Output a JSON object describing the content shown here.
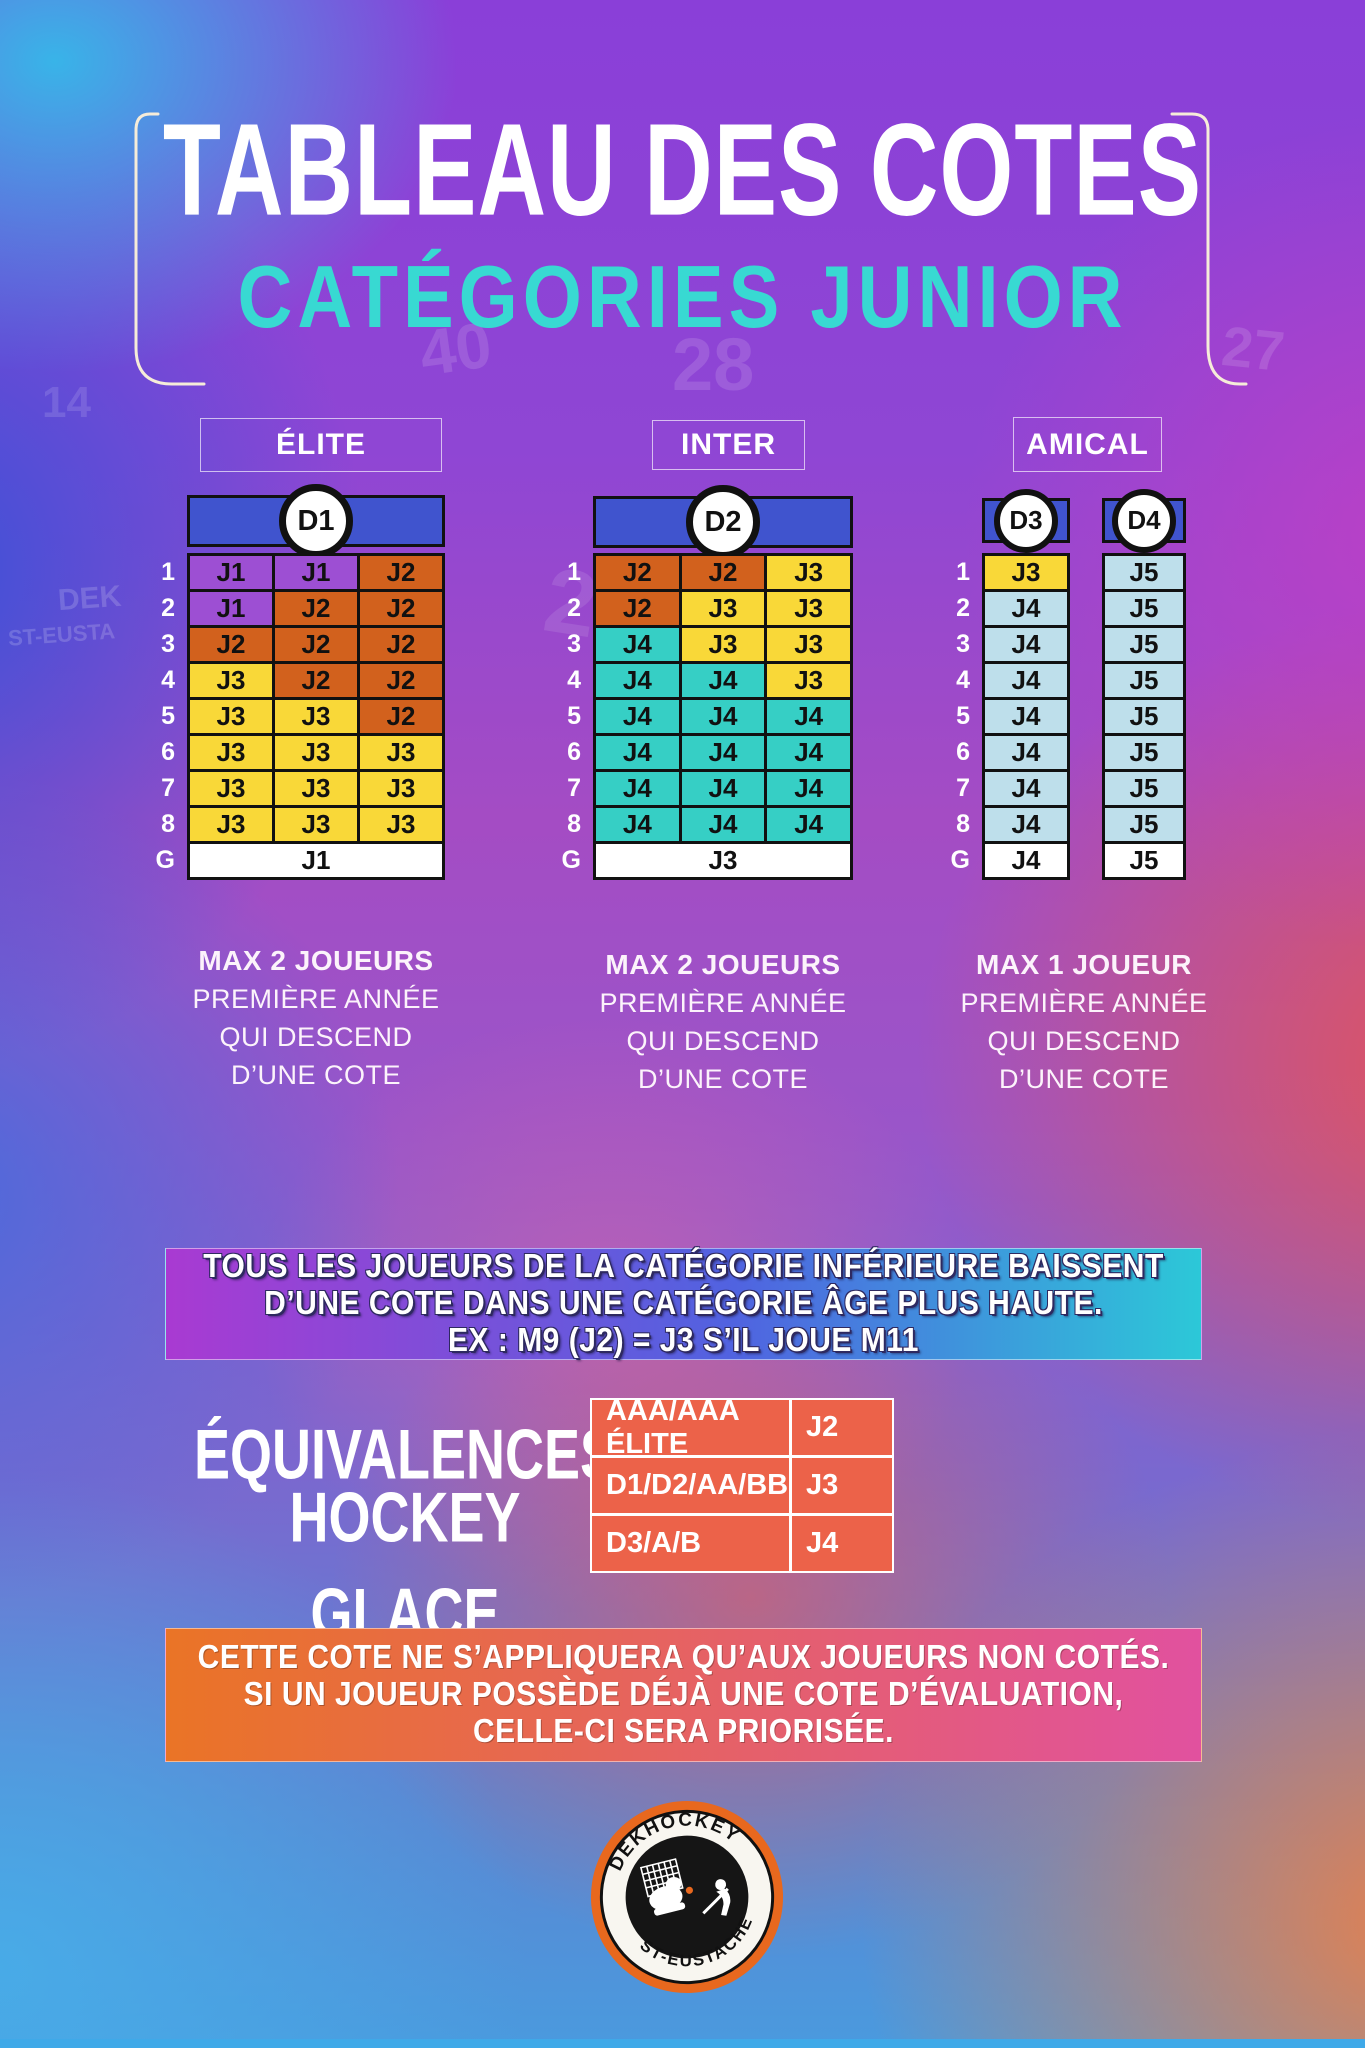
{
  "title": {
    "line1": "TABLEAU DES COTES",
    "line2": "CATÉGORIES JUNIOR"
  },
  "categories": [
    {
      "label": "ÉLITE"
    },
    {
      "label": "INTER"
    },
    {
      "label": "AMICAL"
    }
  ],
  "row_labels": [
    "1",
    "2",
    "3",
    "4",
    "5",
    "6",
    "7",
    "8",
    "G"
  ],
  "grids": [
    {
      "division": "D1",
      "columns": 3,
      "rows": [
        [
          {
            "v": "J1",
            "c": "purple"
          },
          {
            "v": "J1",
            "c": "purple"
          },
          {
            "v": "J2",
            "c": "orange"
          }
        ],
        [
          {
            "v": "J1",
            "c": "purple"
          },
          {
            "v": "J2",
            "c": "orange"
          },
          {
            "v": "J2",
            "c": "orange"
          }
        ],
        [
          {
            "v": "J2",
            "c": "orange"
          },
          {
            "v": "J2",
            "c": "orange"
          },
          {
            "v": "J2",
            "c": "orange"
          }
        ],
        [
          {
            "v": "J3",
            "c": "yellow"
          },
          {
            "v": "J2",
            "c": "orange"
          },
          {
            "v": "J2",
            "c": "orange"
          }
        ],
        [
          {
            "v": "J3",
            "c": "yellow"
          },
          {
            "v": "J3",
            "c": "yellow"
          },
          {
            "v": "J2",
            "c": "orange"
          }
        ],
        [
          {
            "v": "J3",
            "c": "yellow"
          },
          {
            "v": "J3",
            "c": "yellow"
          },
          {
            "v": "J3",
            "c": "yellow"
          }
        ],
        [
          {
            "v": "J3",
            "c": "yellow"
          },
          {
            "v": "J3",
            "c": "yellow"
          },
          {
            "v": "J3",
            "c": "yellow"
          }
        ],
        [
          {
            "v": "J3",
            "c": "yellow"
          },
          {
            "v": "J3",
            "c": "yellow"
          },
          {
            "v": "J3",
            "c": "yellow"
          }
        ]
      ],
      "goalie": {
        "v": "J1",
        "c": "white"
      }
    },
    {
      "division": "D2",
      "columns": 3,
      "rows": [
        [
          {
            "v": "J2",
            "c": "orange"
          },
          {
            "v": "J2",
            "c": "orange"
          },
          {
            "v": "J3",
            "c": "yellow"
          }
        ],
        [
          {
            "v": "J2",
            "c": "orange"
          },
          {
            "v": "J3",
            "c": "yellow"
          },
          {
            "v": "J3",
            "c": "yellow"
          }
        ],
        [
          {
            "v": "J4",
            "c": "teal"
          },
          {
            "v": "J3",
            "c": "yellow"
          },
          {
            "v": "J3",
            "c": "yellow"
          }
        ],
        [
          {
            "v": "J4",
            "c": "teal"
          },
          {
            "v": "J4",
            "c": "teal"
          },
          {
            "v": "J3",
            "c": "yellow"
          }
        ],
        [
          {
            "v": "J4",
            "c": "teal"
          },
          {
            "v": "J4",
            "c": "teal"
          },
          {
            "v": "J4",
            "c": "teal"
          }
        ],
        [
          {
            "v": "J4",
            "c": "teal"
          },
          {
            "v": "J4",
            "c": "teal"
          },
          {
            "v": "J4",
            "c": "teal"
          }
        ],
        [
          {
            "v": "J4",
            "c": "teal"
          },
          {
            "v": "J4",
            "c": "teal"
          },
          {
            "v": "J4",
            "c": "teal"
          }
        ],
        [
          {
            "v": "J4",
            "c": "teal"
          },
          {
            "v": "J4",
            "c": "teal"
          },
          {
            "v": "J4",
            "c": "teal"
          }
        ]
      ],
      "goalie": {
        "v": "J3",
        "c": "white"
      }
    },
    {
      "division": "D3",
      "columns": 1,
      "rows": [
        [
          {
            "v": "J3",
            "c": "yellow"
          }
        ],
        [
          {
            "v": "J4",
            "c": "lightblue"
          }
        ],
        [
          {
            "v": "J4",
            "c": "lightblue"
          }
        ],
        [
          {
            "v": "J4",
            "c": "lightblue"
          }
        ],
        [
          {
            "v": "J4",
            "c": "lightblue"
          }
        ],
        [
          {
            "v": "J4",
            "c": "lightblue"
          }
        ],
        [
          {
            "v": "J4",
            "c": "lightblue"
          }
        ],
        [
          {
            "v": "J4",
            "c": "lightblue"
          }
        ]
      ],
      "goalie": {
        "v": "J4",
        "c": "white"
      }
    },
    {
      "division": "D4",
      "columns": 1,
      "rows": [
        [
          {
            "v": "J5",
            "c": "lightblue"
          }
        ],
        [
          {
            "v": "J5",
            "c": "lightblue"
          }
        ],
        [
          {
            "v": "J5",
            "c": "lightblue"
          }
        ],
        [
          {
            "v": "J5",
            "c": "lightblue"
          }
        ],
        [
          {
            "v": "J5",
            "c": "lightblue"
          }
        ],
        [
          {
            "v": "J5",
            "c": "lightblue"
          }
        ],
        [
          {
            "v": "J5",
            "c": "lightblue"
          }
        ],
        [
          {
            "v": "J5",
            "c": "lightblue"
          }
        ]
      ],
      "goalie": {
        "v": "J5",
        "c": "white"
      }
    }
  ],
  "notes": [
    {
      "lines": [
        "MAX 2 JOUEURS",
        "PREMIÈRE ANNÉE",
        "QUI DESCEND",
        "D’UNE COTE"
      ]
    },
    {
      "lines": [
        "MAX 2 JOUEURS",
        "PREMIÈRE ANNÉE",
        "QUI DESCEND",
        "D’UNE COTE"
      ]
    },
    {
      "lines": [
        "MAX 1 JOUEUR",
        "PREMIÈRE ANNÉE",
        "QUI DESCEND",
        "D’UNE COTE"
      ]
    }
  ],
  "banner_rule": {
    "lines": [
      "TOUS LES JOUEURS DE LA CATÉGORIE INFÉRIEURE BAISSENT",
      "D’UNE COTE DANS UNE CATÉGORIE ÂGE PLUS HAUTE.",
      "EX : M9 (J2) = J3 S’IL JOUE M11"
    ]
  },
  "equivalences": {
    "title_lines": [
      "ÉQUIVALENCES",
      "HOCKEY GLACE"
    ],
    "rows": [
      {
        "label": "AAA/AAA ÉLITE",
        "value": "J2"
      },
      {
        "label": "D1/D2/AA/BB",
        "value": "J3"
      },
      {
        "label": "D3/A/B",
        "value": "J4"
      }
    ]
  },
  "banner_note": {
    "lines": [
      "CETTE COTE NE S’APPLIQUERA QU’AUX JOUEURS NON COTÉS.",
      "SI UN JOUEUR POSSÈDE DÉJÀ UNE COTE D’ÉVALUATION,",
      "CELLE-CI SERA PRIORISÉE."
    ]
  },
  "logo": {
    "arc_top": "DEKHOCKEY",
    "arc_bottom": "ST-EUSTACHE"
  },
  "ghosts": [
    "14",
    "40",
    "28",
    "27",
    "28",
    "DEK",
    "ST-EUSTA"
  ],
  "colors": {
    "purple": "#9d4fd3",
    "orange": "#d2611d",
    "yellow": "#f9d838",
    "teal": "#36cfc5",
    "lightblue": "#bedfeb",
    "white": "#ffffff",
    "header_blue": "#4054ce",
    "title_cyan": "#38d9d2",
    "equiv_cell": "#ec6249",
    "banner_rule_gradient": [
      "#a93ad2",
      "#5063e0",
      "#2cc8d8"
    ],
    "banner_note_gradient": [
      "#ea7426",
      "#e1519f"
    ],
    "footer_bar": "#3fa9e8",
    "logo_orange": "#e8681e"
  }
}
